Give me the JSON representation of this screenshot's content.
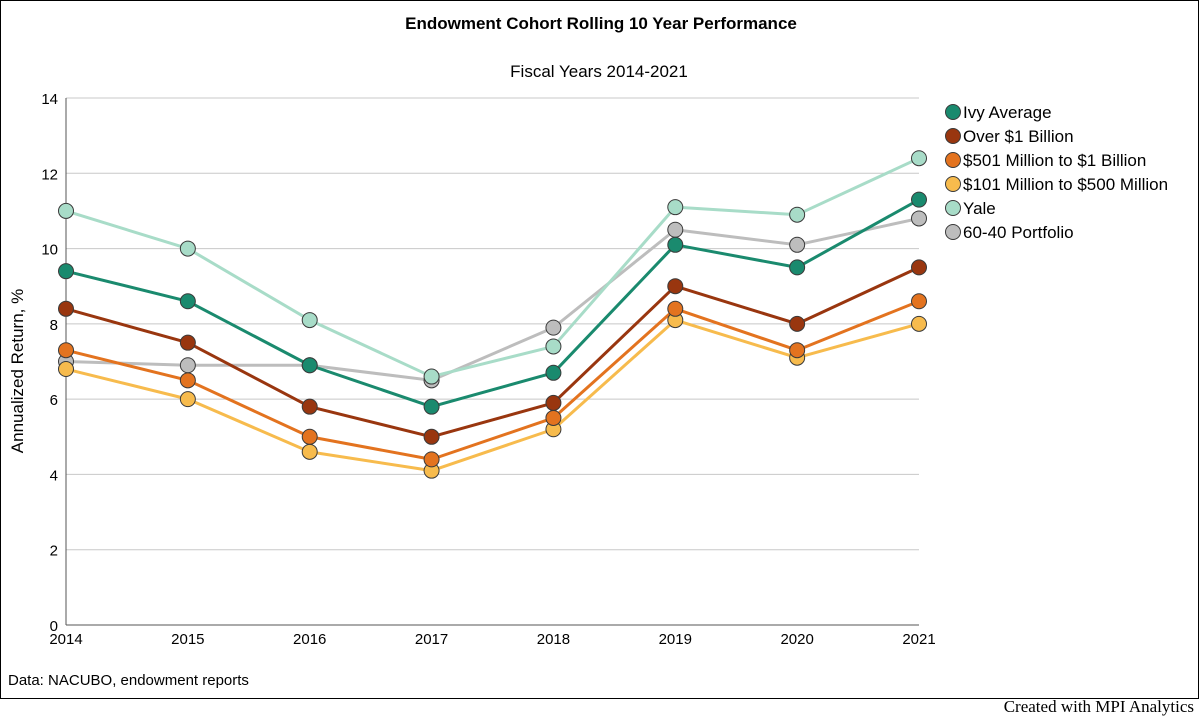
{
  "credit": "Created with MPI Analytics",
  "source_note": "Data: NACUBO, endowment reports",
  "chart_data": {
    "type": "line",
    "title": "Endowment Cohort Rolling 10 Year Performance",
    "subtitle": "Fiscal Years 2014-2021",
    "xlabel": "",
    "ylabel": "Annualized Return, %",
    "ylim": [
      0,
      14
    ],
    "yticks": [
      0,
      2,
      4,
      6,
      8,
      10,
      12,
      14
    ],
    "x": [
      "2014",
      "2015",
      "2016",
      "2017",
      "2018",
      "2019",
      "2020",
      "2021"
    ],
    "grid": true,
    "legend_position": "right",
    "series": [
      {
        "name": "Ivy Average",
        "color": "#1a8a6e",
        "values": [
          9.4,
          8.6,
          6.9,
          5.8,
          6.7,
          10.1,
          9.5,
          11.3
        ]
      },
      {
        "name": "Over $1 Billion",
        "color": "#99360f",
        "values": [
          8.4,
          7.5,
          5.8,
          5.0,
          5.9,
          9.0,
          8.0,
          9.5
        ]
      },
      {
        "name": "$501 Million to $1 Billion",
        "color": "#e3731f",
        "values": [
          7.3,
          6.5,
          5.0,
          4.4,
          5.5,
          8.4,
          7.3,
          8.6
        ]
      },
      {
        "name": "$101 Million to $500 Million",
        "color": "#f7bb4d",
        "values": [
          6.8,
          6.0,
          4.6,
          4.1,
          5.2,
          8.1,
          7.1,
          8.0
        ]
      },
      {
        "name": "Yale",
        "color": "#a8dcc8",
        "values": [
          11.0,
          10.0,
          8.1,
          6.6,
          7.4,
          11.1,
          10.9,
          12.4
        ]
      },
      {
        "name": "60-40 Portfolio",
        "color": "#bdbdbd",
        "values": [
          7.0,
          6.9,
          6.9,
          6.5,
          7.9,
          10.5,
          10.1,
          10.8
        ]
      }
    ]
  }
}
